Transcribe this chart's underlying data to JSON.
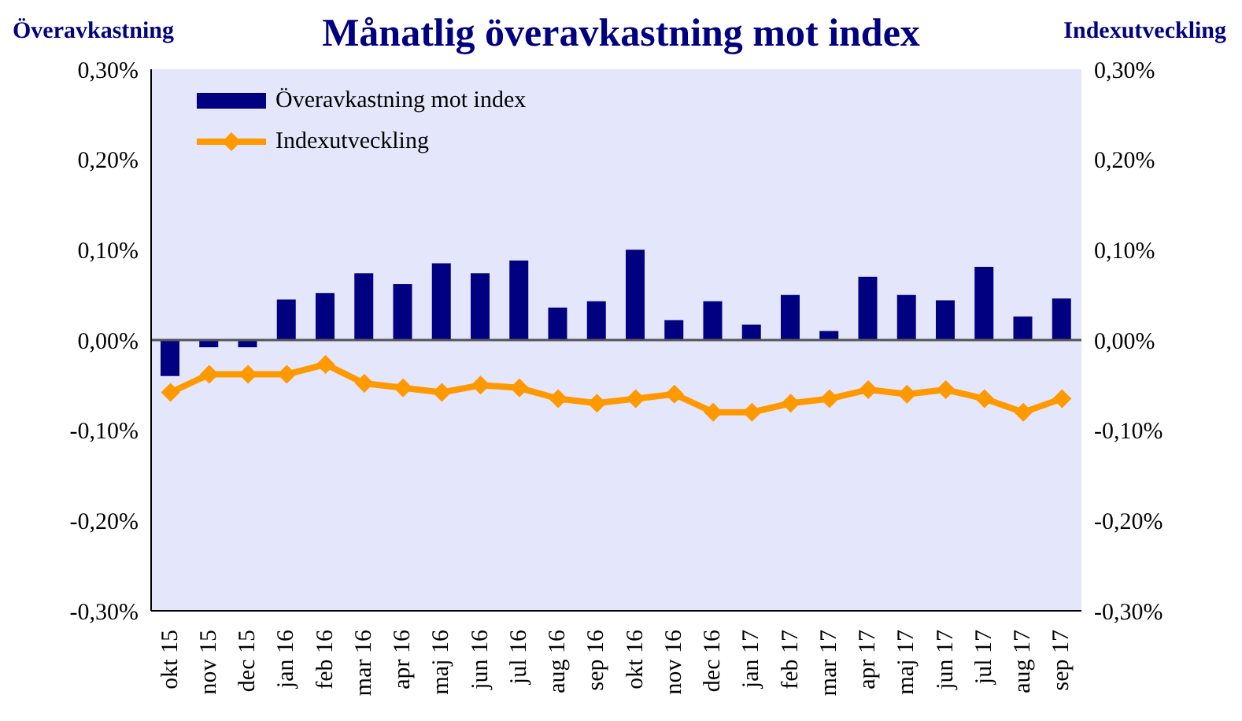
{
  "chart_data": {
    "type": "bar",
    "title": "Månatlig överavkastning mot index",
    "ylabel": "Överavkastning",
    "y2label": "Indexutveckling",
    "categories": [
      "okt 15",
      "nov 15",
      "dec 15",
      "jan 16",
      "feb 16",
      "mar 16",
      "apr 16",
      "maj 16",
      "jun 16",
      "jul 16",
      "aug 16",
      "sep 16",
      "okt 16",
      "nov 16",
      "dec 16",
      "jan 17",
      "feb 17",
      "mar 17",
      "apr 17",
      "maj 17",
      "jun 17",
      "jul 17",
      "aug 17",
      "sep 17"
    ],
    "series": [
      {
        "name": "Överavkastning mot index",
        "color": "#000080",
        "values": [
          -0.04,
          -0.008,
          -0.008,
          0.045,
          0.052,
          0.074,
          0.062,
          0.085,
          0.074,
          0.088,
          0.036,
          0.043,
          0.1,
          0.022,
          0.043,
          0.017,
          0.05,
          0.01,
          0.07,
          0.05,
          0.044,
          0.081,
          0.026,
          0.046
        ]
      },
      {
        "name": "Indexutveckling",
        "type": "line",
        "color": "#ff9900",
        "marker": "diamond",
        "values": [
          -0.058,
          -0.038,
          -0.038,
          -0.038,
          -0.027,
          -0.048,
          -0.053,
          -0.058,
          -0.05,
          -0.053,
          -0.065,
          -0.07,
          -0.065,
          -0.06,
          -0.08,
          -0.08,
          -0.07,
          -0.065,
          -0.055,
          -0.06,
          -0.055,
          -0.065,
          -0.08,
          -0.065
        ]
      }
    ],
    "ylim": [
      -0.3,
      0.3
    ],
    "yticks": [
      {
        "value": -0.3,
        "label": "-0,30%"
      },
      {
        "value": -0.2,
        "label": "-0,20%"
      },
      {
        "value": -0.1,
        "label": "-0,10%"
      },
      {
        "value": 0,
        "label": "0,00%"
      },
      {
        "value": 0.1,
        "label": "0,10%"
      },
      {
        "value": 0.2,
        "label": "0,20%"
      },
      {
        "value": 0.3,
        "label": "0,30%"
      }
    ],
    "y2lim": [
      -0.3,
      0.3
    ],
    "y2ticks": [
      {
        "value": -0.3,
        "label": "-0,30%"
      },
      {
        "value": -0.2,
        "label": "-0,20%"
      },
      {
        "value": -0.1,
        "label": "-0,10%"
      },
      {
        "value": 0,
        "label": "0,00%"
      },
      {
        "value": 0.1,
        "label": "0,10%"
      },
      {
        "value": 0.2,
        "label": "0,20%"
      },
      {
        "value": 0.3,
        "label": "0,30%"
      }
    ],
    "ref_lines": [
      {
        "axis": "y",
        "value": 0,
        "color": "#555555"
      }
    ],
    "legend": "top left"
  }
}
